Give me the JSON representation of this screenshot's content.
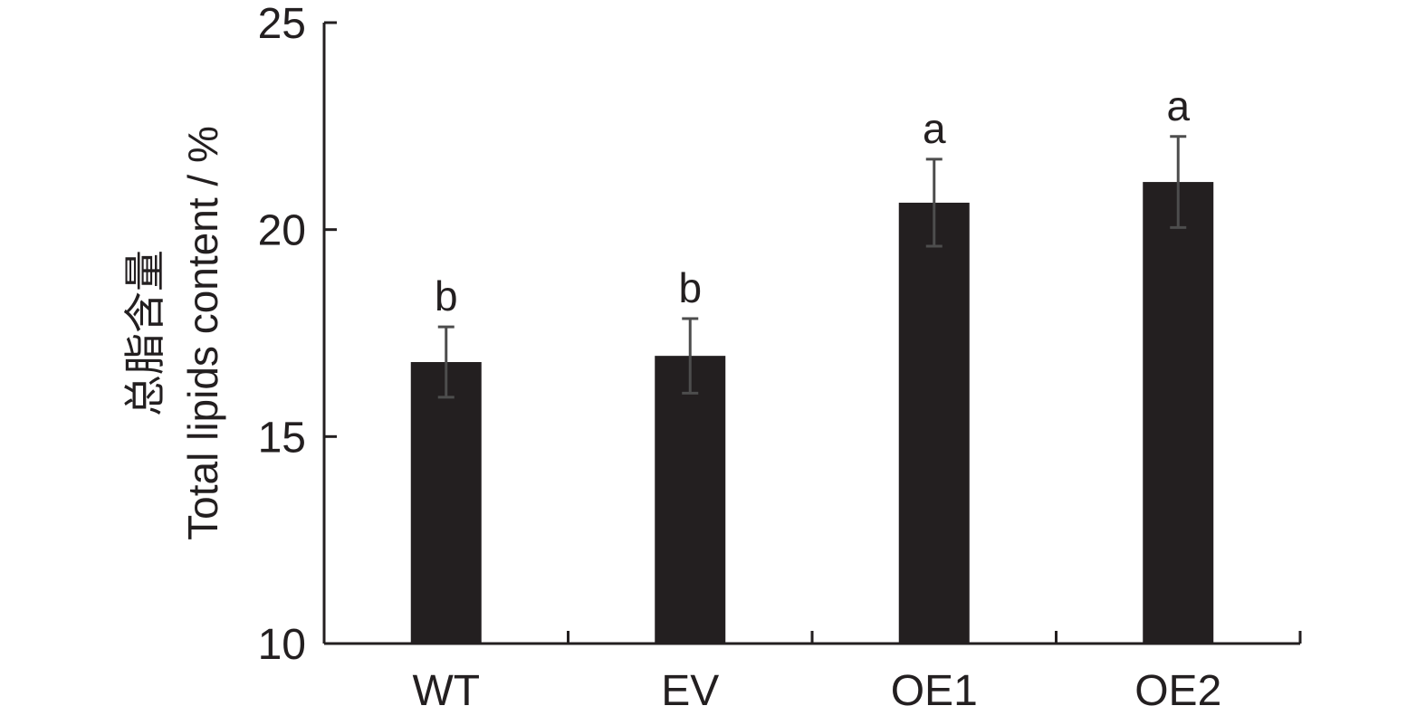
{
  "chart_data": {
    "type": "bar",
    "title": "",
    "xlabel": "",
    "ylabel_cn": "总脂含量",
    "ylabel": "Total lipids content / %",
    "categories": [
      "WT",
      "EV",
      "OE1",
      "OE2"
    ],
    "values": [
      16.8,
      16.95,
      20.65,
      21.15
    ],
    "errors": [
      0.85,
      0.9,
      1.05,
      1.1
    ],
    "significance": [
      "b",
      "b",
      "a",
      "a"
    ],
    "ylim": [
      10,
      25
    ],
    "yticks": [
      10,
      15,
      20,
      25
    ],
    "grid": false,
    "legend": "none",
    "colors": {
      "bar": "#231f20",
      "error": "#4d4d4d",
      "axis": "#231f20"
    }
  }
}
